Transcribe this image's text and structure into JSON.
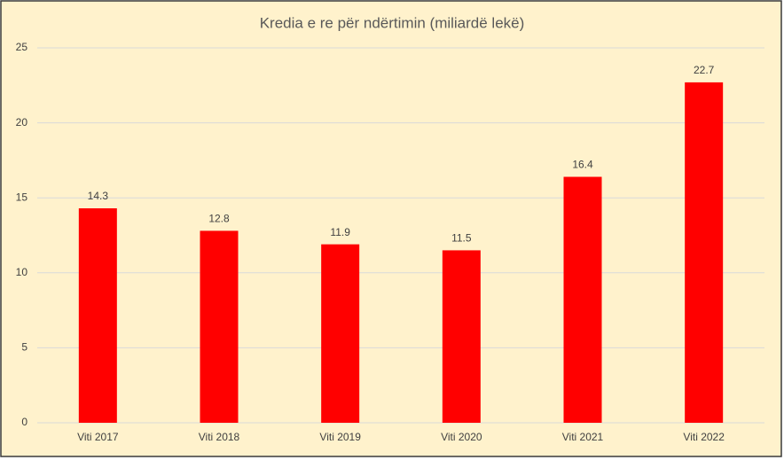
{
  "chart_data": {
    "type": "bar",
    "title": "Kredia e re për ndërtimin (miliardë lekë)",
    "categories": [
      "Viti 2017",
      "Viti 2018",
      "Viti 2019",
      "Viti 2020",
      "Viti 2021",
      "Viti 2022"
    ],
    "values": [
      14.3,
      12.8,
      11.9,
      11.5,
      16.4,
      22.7
    ],
    "color": "#ff0000",
    "ylim": [
      0,
      25
    ],
    "yticks": [
      0,
      5,
      10,
      15,
      20,
      25
    ],
    "grid": true
  }
}
